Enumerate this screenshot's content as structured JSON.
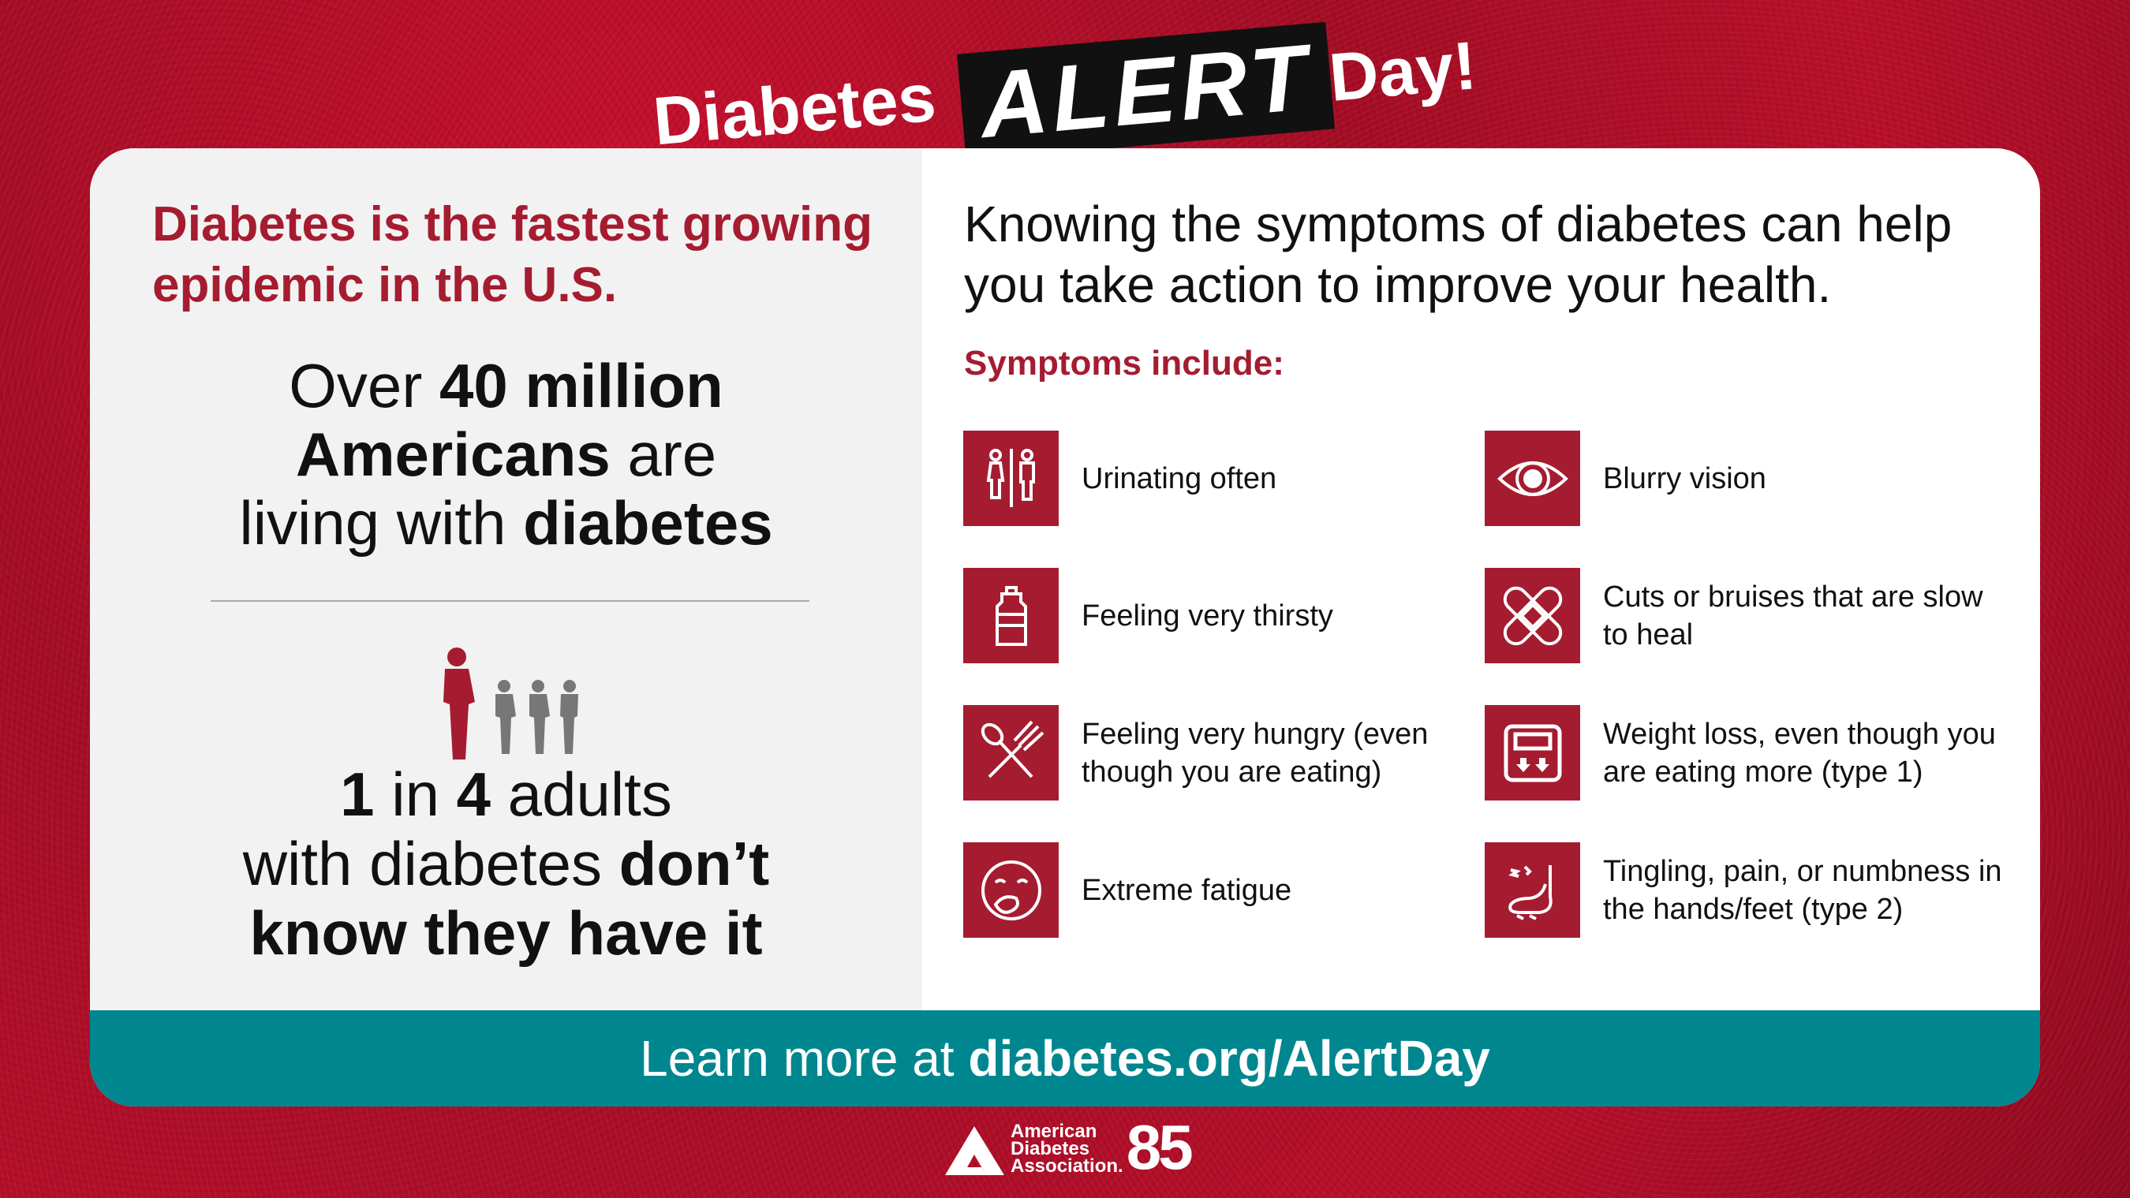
{
  "header": {
    "title_pre": "Diabetes",
    "title_alert": "ALERT",
    "title_post": "Day!"
  },
  "left": {
    "heading": "Diabetes is the fastest growing epidemic in the U.S.",
    "stat1": {
      "a": "Over ",
      "b": "40 million",
      "c": "Americans",
      "d": " are",
      "e": "living with ",
      "f": "diabetes"
    },
    "stat2": {
      "a": "1",
      "b": " in ",
      "c": "4",
      "d": " adults",
      "e": "with diabetes ",
      "f": "don’t",
      "g": "know they have it"
    },
    "people_highlight": 1,
    "people_total": 4
  },
  "right": {
    "heading": "Knowing the symptoms of diabetes can help you take action to improve your health.",
    "symptoms_label": "Symptoms include:",
    "symptoms": [
      {
        "icon": "restroom-icon",
        "label": "Urinating often"
      },
      {
        "icon": "eye-icon",
        "label": "Blurry vision"
      },
      {
        "icon": "water-bottle-icon",
        "label": "Feeling very thirsty"
      },
      {
        "icon": "bandage-icon",
        "label": "Cuts or bruises that are slow to heal"
      },
      {
        "icon": "utensils-icon",
        "label": "Feeling very hungry (even though you are eating)"
      },
      {
        "icon": "scale-icon",
        "label": "Weight loss, even though you are eating more (type 1)"
      },
      {
        "icon": "yawn-face-icon",
        "label": "Extreme fatigue"
      },
      {
        "icon": "foot-tingling-icon",
        "label": "Tingling, pain, or numbness in the hands/feet (type 2)"
      }
    ]
  },
  "footer": {
    "pre": "Learn more at ",
    "link": "diabetes.org/AlertDay"
  },
  "logo": {
    "line1": "American",
    "line2": "Diabetes",
    "line3": "Association.",
    "number": "85"
  },
  "colors": {
    "brand_red": "#a51c30",
    "teal": "#00868f",
    "panel_gray": "#f2f2f2",
    "person_gray": "#777777"
  }
}
